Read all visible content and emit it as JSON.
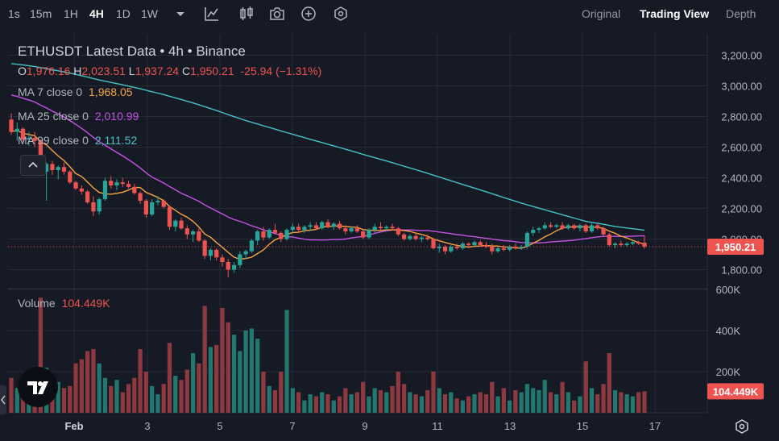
{
  "toolbar": {
    "timeframes": [
      "1s",
      "15m",
      "1H",
      "4H",
      "1D",
      "1W"
    ],
    "active_timeframe": "4H",
    "tools": [
      "chevron-down-icon",
      "indicators-icon",
      "candle-type-icon",
      "camera-icon",
      "plus-circle-icon",
      "settings-hex-icon"
    ],
    "views": [
      "Original",
      "Trading View",
      "Depth"
    ],
    "active_view": "Trading View"
  },
  "legend": {
    "title": "ETHUSDT Latest Data • 4h • Binance",
    "ohlc": {
      "o_label": "O",
      "o": "1,976.16",
      "h_label": "H",
      "h": "2,023.51",
      "l_label": "L",
      "l": "1,937.24",
      "c_label": "C",
      "c": "1,950.21",
      "change": "-25.94 (−1.31%)"
    },
    "ma7": {
      "label": "MA 7 close 0",
      "value": "1,968.05"
    },
    "ma25": {
      "label": "MA 25 close 0",
      "value": "2,010.99"
    },
    "ma99": {
      "label": "MA 99 close 0",
      "value": "2,111.52"
    },
    "volume": {
      "label": "Volume",
      "value": "104.449K"
    }
  },
  "price_axis": {
    "ticks": [
      "3,200.00",
      "3,000.00",
      "2,800.00",
      "2,600.00",
      "2,400.00",
      "2,200.00",
      "2,000.00",
      "1,800.00"
    ],
    "last_price": "1,950.21"
  },
  "volume_axis": {
    "ticks": [
      "600K",
      "400K",
      "200K"
    ],
    "last_volume": "104.449K"
  },
  "time_axis": {
    "labels": [
      "Feb",
      "3",
      "5",
      "7",
      "9",
      "11",
      "13",
      "15",
      "17"
    ]
  },
  "colors": {
    "up": "#26a69a",
    "down": "#ef5350",
    "vol_up": "#22786f",
    "vol_down": "#8e3940",
    "ma7": "#f7a440",
    "ma25": "#c653e6",
    "ma99": "#47c2c4",
    "grid": "#262b36",
    "text": "#d1d4dc",
    "axis_text": "#b2b5be"
  },
  "chart_data": {
    "type": "candlestick",
    "symbol": "ETHUSDT",
    "interval": "4h",
    "ylim": [
      1700,
      3250
    ],
    "volume_ylim": [
      0,
      700000
    ],
    "candles": [
      {
        "o": 2780,
        "h": 2820,
        "l": 2680,
        "c": 2700,
        "v": 170000
      },
      {
        "o": 2700,
        "h": 2760,
        "l": 2640,
        "c": 2720,
        "v": 120000
      },
      {
        "o": 2720,
        "h": 2730,
        "l": 2620,
        "c": 2650,
        "v": 150000
      },
      {
        "o": 2650,
        "h": 2700,
        "l": 2610,
        "c": 2660,
        "v": 90000
      },
      {
        "o": 2660,
        "h": 2700,
        "l": 2600,
        "c": 2640,
        "v": 140000
      },
      {
        "o": 2640,
        "h": 2650,
        "l": 2420,
        "c": 2440,
        "v": 560000
      },
      {
        "o": 2440,
        "h": 2500,
        "l": 2250,
        "c": 2490,
        "v": 220000
      },
      {
        "o": 2490,
        "h": 2510,
        "l": 2420,
        "c": 2450,
        "v": 100000
      },
      {
        "o": 2450,
        "h": 2480,
        "l": 2390,
        "c": 2470,
        "v": 150000
      },
      {
        "o": 2470,
        "h": 2500,
        "l": 2420,
        "c": 2440,
        "v": 120000
      },
      {
        "o": 2440,
        "h": 2450,
        "l": 2360,
        "c": 2370,
        "v": 130000
      },
      {
        "o": 2370,
        "h": 2380,
        "l": 2320,
        "c": 2330,
        "v": 240000
      },
      {
        "o": 2330,
        "h": 2350,
        "l": 2290,
        "c": 2310,
        "v": 260000
      },
      {
        "o": 2310,
        "h": 2320,
        "l": 2230,
        "c": 2240,
        "v": 300000
      },
      {
        "o": 2240,
        "h": 2280,
        "l": 2150,
        "c": 2180,
        "v": 310000
      },
      {
        "o": 2180,
        "h": 2270,
        "l": 2160,
        "c": 2260,
        "v": 240000
      },
      {
        "o": 2260,
        "h": 2400,
        "l": 2250,
        "c": 2380,
        "v": 170000
      },
      {
        "o": 2380,
        "h": 2410,
        "l": 2330,
        "c": 2350,
        "v": 130000
      },
      {
        "o": 2350,
        "h": 2390,
        "l": 2320,
        "c": 2370,
        "v": 160000
      },
      {
        "o": 2370,
        "h": 2400,
        "l": 2340,
        "c": 2360,
        "v": 100000
      },
      {
        "o": 2360,
        "h": 2380,
        "l": 2330,
        "c": 2340,
        "v": 140000
      },
      {
        "o": 2340,
        "h": 2360,
        "l": 2290,
        "c": 2300,
        "v": 170000
      },
      {
        "o": 2300,
        "h": 2310,
        "l": 2230,
        "c": 2250,
        "v": 310000
      },
      {
        "o": 2250,
        "h": 2260,
        "l": 2140,
        "c": 2160,
        "v": 200000
      },
      {
        "o": 2160,
        "h": 2260,
        "l": 2150,
        "c": 2240,
        "v": 130000
      },
      {
        "o": 2240,
        "h": 2280,
        "l": 2220,
        "c": 2250,
        "v": 90000
      },
      {
        "o": 2250,
        "h": 2260,
        "l": 2200,
        "c": 2210,
        "v": 140000
      },
      {
        "o": 2210,
        "h": 2220,
        "l": 2060,
        "c": 2080,
        "v": 340000
      },
      {
        "o": 2080,
        "h": 2130,
        "l": 2050,
        "c": 2120,
        "v": 180000
      },
      {
        "o": 2120,
        "h": 2140,
        "l": 2060,
        "c": 2070,
        "v": 160000
      },
      {
        "o": 2070,
        "h": 2090,
        "l": 2000,
        "c": 2030,
        "v": 210000
      },
      {
        "o": 2030,
        "h": 2060,
        "l": 1980,
        "c": 2050,
        "v": 290000
      },
      {
        "o": 2050,
        "h": 2070,
        "l": 1980,
        "c": 1990,
        "v": 240000
      },
      {
        "o": 1990,
        "h": 2000,
        "l": 1870,
        "c": 1890,
        "v": 520000
      },
      {
        "o": 1890,
        "h": 1940,
        "l": 1860,
        "c": 1930,
        "v": 320000
      },
      {
        "o": 1930,
        "h": 1940,
        "l": 1860,
        "c": 1880,
        "v": 330000
      },
      {
        "o": 1880,
        "h": 1900,
        "l": 1820,
        "c": 1850,
        "v": 510000
      },
      {
        "o": 1850,
        "h": 1870,
        "l": 1750,
        "c": 1800,
        "v": 440000
      },
      {
        "o": 1800,
        "h": 1850,
        "l": 1780,
        "c": 1830,
        "v": 380000
      },
      {
        "o": 1830,
        "h": 1920,
        "l": 1810,
        "c": 1900,
        "v": 300000
      },
      {
        "o": 1900,
        "h": 1930,
        "l": 1870,
        "c": 1920,
        "v": 400000
      },
      {
        "o": 1920,
        "h": 2000,
        "l": 1910,
        "c": 1990,
        "v": 410000
      },
      {
        "o": 1990,
        "h": 2060,
        "l": 1960,
        "c": 2050,
        "v": 360000
      },
      {
        "o": 2050,
        "h": 2080,
        "l": 1990,
        "c": 2010,
        "v": 200000
      },
      {
        "o": 2010,
        "h": 2070,
        "l": 2000,
        "c": 2060,
        "v": 130000
      },
      {
        "o": 2060,
        "h": 2100,
        "l": 2030,
        "c": 2040,
        "v": 110000
      },
      {
        "o": 2040,
        "h": 2050,
        "l": 1980,
        "c": 2000,
        "v": 200000
      },
      {
        "o": 2000,
        "h": 2070,
        "l": 1990,
        "c": 2060,
        "v": 500000
      },
      {
        "o": 2060,
        "h": 2100,
        "l": 2040,
        "c": 2080,
        "v": 120000
      },
      {
        "o": 2080,
        "h": 2100,
        "l": 2040,
        "c": 2060,
        "v": 100000
      },
      {
        "o": 2060,
        "h": 2090,
        "l": 2040,
        "c": 2080,
        "v": 60000
      },
      {
        "o": 2080,
        "h": 2110,
        "l": 2050,
        "c": 2090,
        "v": 90000
      },
      {
        "o": 2090,
        "h": 2110,
        "l": 2060,
        "c": 2070,
        "v": 80000
      },
      {
        "o": 2070,
        "h": 2120,
        "l": 2060,
        "c": 2110,
        "v": 100000
      },
      {
        "o": 2110,
        "h": 2130,
        "l": 2070,
        "c": 2080,
        "v": 90000
      },
      {
        "o": 2080,
        "h": 2110,
        "l": 2060,
        "c": 2100,
        "v": 60000
      },
      {
        "o": 2100,
        "h": 2120,
        "l": 2060,
        "c": 2070,
        "v": 80000
      },
      {
        "o": 2070,
        "h": 2090,
        "l": 2030,
        "c": 2050,
        "v": 120000
      },
      {
        "o": 2050,
        "h": 2080,
        "l": 2040,
        "c": 2070,
        "v": 90000
      },
      {
        "o": 2070,
        "h": 2090,
        "l": 2040,
        "c": 2050,
        "v": 100000
      },
      {
        "o": 2050,
        "h": 2060,
        "l": 2000,
        "c": 2010,
        "v": 150000
      },
      {
        "o": 2010,
        "h": 2070,
        "l": 2000,
        "c": 2060,
        "v": 80000
      },
      {
        "o": 2060,
        "h": 2100,
        "l": 2040,
        "c": 2080,
        "v": 120000
      },
      {
        "o": 2080,
        "h": 2110,
        "l": 2060,
        "c": 2070,
        "v": 110000
      },
      {
        "o": 2070,
        "h": 2090,
        "l": 2050,
        "c": 2080,
        "v": 100000
      },
      {
        "o": 2080,
        "h": 2100,
        "l": 2060,
        "c": 2070,
        "v": 130000
      },
      {
        "o": 2070,
        "h": 2080,
        "l": 2020,
        "c": 2030,
        "v": 200000
      },
      {
        "o": 2030,
        "h": 2040,
        "l": 1990,
        "c": 2000,
        "v": 140000
      },
      {
        "o": 2000,
        "h": 2030,
        "l": 1990,
        "c": 2020,
        "v": 100000
      },
      {
        "o": 2020,
        "h": 2040,
        "l": 1990,
        "c": 2000,
        "v": 90000
      },
      {
        "o": 2000,
        "h": 2020,
        "l": 1980,
        "c": 2010,
        "v": 80000
      },
      {
        "o": 2010,
        "h": 2030,
        "l": 1990,
        "c": 2000,
        "v": 110000
      },
      {
        "o": 2000,
        "h": 2010,
        "l": 1930,
        "c": 1940,
        "v": 200000
      },
      {
        "o": 1940,
        "h": 1970,
        "l": 1910,
        "c": 1950,
        "v": 120000
      },
      {
        "o": 1950,
        "h": 1960,
        "l": 1900,
        "c": 1920,
        "v": 90000
      },
      {
        "o": 1920,
        "h": 1960,
        "l": 1910,
        "c": 1950,
        "v": 100000
      },
      {
        "o": 1950,
        "h": 1970,
        "l": 1930,
        "c": 1940,
        "v": 70000
      },
      {
        "o": 1940,
        "h": 1980,
        "l": 1930,
        "c": 1970,
        "v": 60000
      },
      {
        "o": 1970,
        "h": 1980,
        "l": 1940,
        "c": 1960,
        "v": 80000
      },
      {
        "o": 1960,
        "h": 1990,
        "l": 1950,
        "c": 1980,
        "v": 90000
      },
      {
        "o": 1980,
        "h": 1990,
        "l": 1950,
        "c": 1960,
        "v": 100000
      },
      {
        "o": 1960,
        "h": 1980,
        "l": 1940,
        "c": 1950,
        "v": 90000
      },
      {
        "o": 1950,
        "h": 1970,
        "l": 1900,
        "c": 1920,
        "v": 150000
      },
      {
        "o": 1920,
        "h": 1950,
        "l": 1910,
        "c": 1940,
        "v": 80000
      },
      {
        "o": 1940,
        "h": 1960,
        "l": 1920,
        "c": 1930,
        "v": 120000
      },
      {
        "o": 1930,
        "h": 1960,
        "l": 1920,
        "c": 1950,
        "v": 60000
      },
      {
        "o": 1950,
        "h": 1970,
        "l": 1930,
        "c": 1940,
        "v": 110000
      },
      {
        "o": 1940,
        "h": 1960,
        "l": 1930,
        "c": 1950,
        "v": 100000
      },
      {
        "o": 1950,
        "h": 2050,
        "l": 1940,
        "c": 2040,
        "v": 140000
      },
      {
        "o": 2040,
        "h": 2080,
        "l": 2020,
        "c": 2060,
        "v": 120000
      },
      {
        "o": 2060,
        "h": 2080,
        "l": 2040,
        "c": 2070,
        "v": 110000
      },
      {
        "o": 2070,
        "h": 2110,
        "l": 2060,
        "c": 2090,
        "v": 160000
      },
      {
        "o": 2090,
        "h": 2110,
        "l": 2070,
        "c": 2080,
        "v": 100000
      },
      {
        "o": 2080,
        "h": 2100,
        "l": 2070,
        "c": 2090,
        "v": 90000
      },
      {
        "o": 2090,
        "h": 2110,
        "l": 2060,
        "c": 2070,
        "v": 150000
      },
      {
        "o": 2070,
        "h": 2100,
        "l": 2060,
        "c": 2090,
        "v": 100000
      },
      {
        "o": 2090,
        "h": 2100,
        "l": 2060,
        "c": 2070,
        "v": 60000
      },
      {
        "o": 2070,
        "h": 2100,
        "l": 2050,
        "c": 2090,
        "v": 80000
      },
      {
        "o": 2090,
        "h": 2100,
        "l": 2040,
        "c": 2050,
        "v": 250000
      },
      {
        "o": 2050,
        "h": 2110,
        "l": 2040,
        "c": 2090,
        "v": 120000
      },
      {
        "o": 2090,
        "h": 2100,
        "l": 2060,
        "c": 2070,
        "v": 90000
      },
      {
        "o": 2070,
        "h": 2080,
        "l": 2020,
        "c": 2030,
        "v": 140000
      },
      {
        "o": 2030,
        "h": 2040,
        "l": 1950,
        "c": 1960,
        "v": 290000
      },
      {
        "o": 1960,
        "h": 1980,
        "l": 1940,
        "c": 1970,
        "v": 110000
      },
      {
        "o": 1970,
        "h": 1990,
        "l": 1950,
        "c": 1960,
        "v": 100000
      },
      {
        "o": 1960,
        "h": 1980,
        "l": 1950,
        "c": 1970,
        "v": 90000
      },
      {
        "o": 1970,
        "h": 1990,
        "l": 1960,
        "c": 1980,
        "v": 80000
      },
      {
        "o": 1980,
        "h": 1990,
        "l": 1960,
        "c": 1970,
        "v": 100000
      },
      {
        "o": 1976.16,
        "h": 2023.51,
        "l": 1937.24,
        "c": 1950.21,
        "v": 104449
      }
    ]
  }
}
